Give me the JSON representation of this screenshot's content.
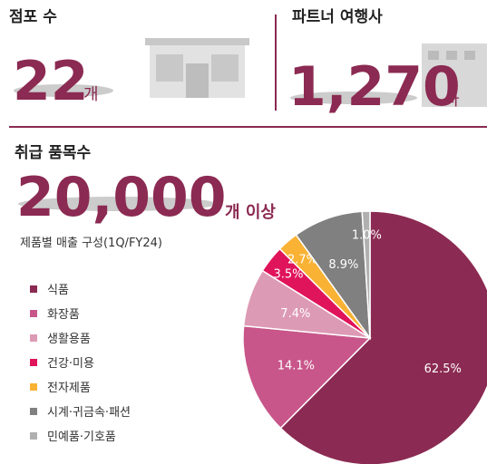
{
  "stats": {
    "stores": {
      "label": "점포 수",
      "number": "22",
      "unit": "개"
    },
    "partners": {
      "label": "파트너 여행사",
      "number": "1,270",
      "unit": "사"
    },
    "items": {
      "label": "취급 품목수",
      "number": "20,000",
      "unit": "개 이상"
    }
  },
  "chart_data": {
    "type": "pie",
    "title": "제품별 매출 구성(1Q/FY24)",
    "categories": [
      "식품",
      "화장품",
      "생활용품",
      "건강·미용",
      "전자제품",
      "시계·귀금속·패션",
      "민예품·기호품"
    ],
    "values": [
      62.5,
      14.1,
      7.4,
      3.5,
      2.7,
      8.9,
      1.0
    ],
    "value_labels": [
      "62.5%",
      "14.1%",
      "7.4%",
      "3.5%",
      "2.7%",
      "8.9%",
      "1.0%"
    ],
    "colors": [
      "#8b2a52",
      "#c8568a",
      "#dd9ab5",
      "#e0145a",
      "#f9b233",
      "#808080",
      "#b0b0b0"
    ],
    "legend": "left"
  }
}
